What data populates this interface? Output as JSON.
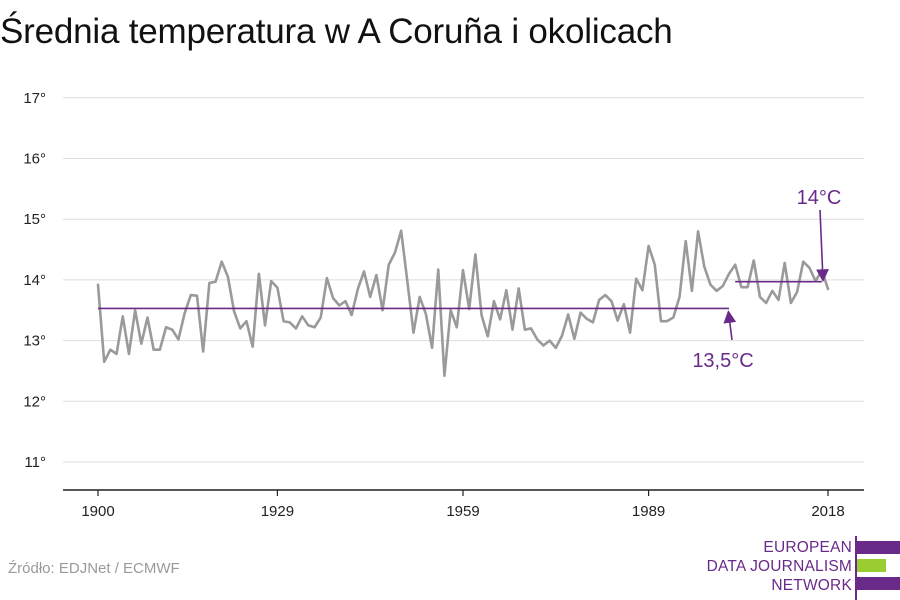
{
  "title": "Średnia temperatura w A Coruña i okolicach",
  "source": "Źródło: EDJNet / ECMWF",
  "logo": {
    "lines": [
      "EUROPEAN",
      "DATA JOURNALISM",
      "NETWORK"
    ],
    "color_text": "#6a2a8a",
    "color_purple": "#6a2a8a",
    "color_green": "#9acd32"
  },
  "chart_data": {
    "type": "line",
    "title": "Średnia temperatura w A Coruña i okolicach",
    "x_ticks": [
      "1900",
      "1929",
      "1959",
      "1989",
      "2018"
    ],
    "y_ticks": [
      "11°",
      "12°",
      "13°",
      "14°",
      "15°",
      "16°",
      "17°"
    ],
    "ylim": [
      10.5,
      17.2
    ],
    "xlim": [
      1900,
      2018
    ],
    "grid": true,
    "x": [
      1900,
      1901,
      1902,
      1903,
      1904,
      1905,
      1906,
      1907,
      1908,
      1909,
      1910,
      1911,
      1912,
      1913,
      1914,
      1915,
      1916,
      1917,
      1918,
      1919,
      1920,
      1921,
      1922,
      1923,
      1924,
      1925,
      1926,
      1927,
      1928,
      1929,
      1930,
      1931,
      1932,
      1933,
      1934,
      1935,
      1936,
      1937,
      1938,
      1939,
      1940,
      1941,
      1942,
      1943,
      1944,
      1945,
      1946,
      1947,
      1948,
      1949,
      1950,
      1951,
      1952,
      1953,
      1954,
      1955,
      1956,
      1957,
      1958,
      1959,
      1960,
      1961,
      1962,
      1963,
      1964,
      1965,
      1966,
      1967,
      1968,
      1969,
      1970,
      1971,
      1972,
      1973,
      1974,
      1975,
      1976,
      1977,
      1978,
      1979,
      1980,
      1981,
      1982,
      1983,
      1984,
      1985,
      1986,
      1987,
      1988,
      1989,
      1990,
      1991,
      1992,
      1993,
      1994,
      1995,
      1996,
      1997,
      1998,
      1999,
      2000,
      2001,
      2002,
      2003,
      2004,
      2005,
      2006,
      2007,
      2008,
      2009,
      2010,
      2011,
      2012,
      2013,
      2014,
      2015,
      2016,
      2017,
      2018
    ],
    "series": [
      {
        "color": "#9a9a9a",
        "values": [
          13.92,
          12.65,
          12.85,
          12.78,
          13.4,
          12.78,
          13.5,
          12.95,
          13.38,
          12.85,
          12.85,
          13.22,
          13.18,
          13.02,
          13.45,
          13.75,
          13.74,
          12.82,
          13.95,
          13.97,
          14.3,
          14.05,
          13.48,
          13.2,
          13.32,
          12.9,
          14.1,
          13.25,
          13.98,
          13.87,
          13.32,
          13.3,
          13.2,
          13.4,
          13.25,
          13.22,
          13.38,
          14.03,
          13.7,
          13.58,
          13.65,
          13.42,
          13.85,
          14.14,
          13.72,
          14.08,
          13.5,
          14.25,
          14.45,
          14.81,
          13.98,
          13.13,
          13.72,
          13.44,
          12.88,
          14.17,
          12.42,
          13.5,
          13.22,
          14.16,
          13.52,
          14.42,
          13.42,
          13.07,
          13.65,
          13.35,
          13.83,
          13.18,
          13.86,
          13.18,
          13.2,
          13.02,
          12.92,
          13.0,
          12.88,
          13.08,
          13.43,
          13.03,
          13.46,
          13.36,
          13.3,
          13.67,
          13.75,
          13.65,
          13.33,
          13.6,
          13.13,
          14.02,
          13.83,
          14.56,
          14.25,
          13.32,
          13.32,
          13.38,
          13.72,
          14.64,
          13.82,
          14.8,
          14.22,
          13.92,
          13.82,
          13.9,
          14.1,
          14.25,
          13.88,
          13.88,
          14.32,
          13.72,
          13.62,
          13.82,
          13.67,
          14.28,
          13.62,
          13.8,
          14.3,
          14.2,
          13.98,
          14.16,
          13.85
        ]
      }
    ],
    "reference_lines": [
      {
        "from": 1900,
        "to": 2002,
        "value": 13.53,
        "label": "13,5°C",
        "color": "#6a2a8a"
      },
      {
        "from": 2003,
        "to": 2017,
        "value": 13.97,
        "label": "14°C",
        "color": "#6a2a8a"
      }
    ]
  }
}
